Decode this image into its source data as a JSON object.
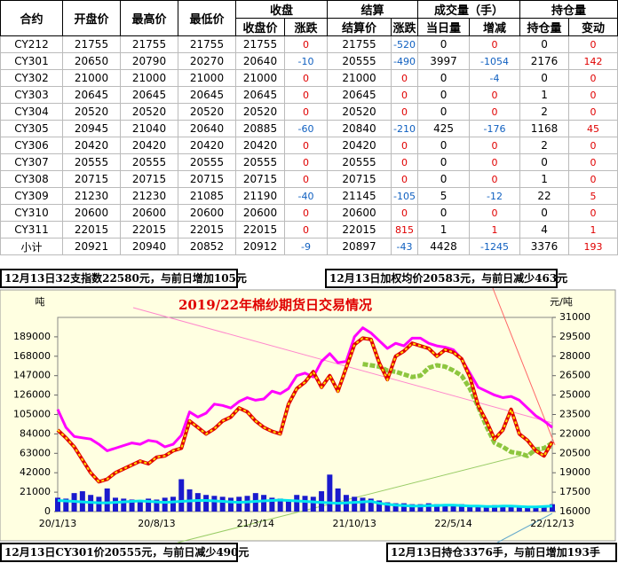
{
  "table": {
    "header_top": [
      "合约",
      "开盘价",
      "最高价",
      "最低价",
      "收盘",
      "结算",
      "成交量（手）",
      "持仓量"
    ],
    "header_sub": [
      "收盘价",
      "涨跌",
      "结算价",
      "涨跌",
      "当日量",
      "增减",
      "持仓量",
      "变动"
    ],
    "rows": [
      [
        "CY212",
        21755,
        21755,
        21755,
        21755,
        0,
        21755,
        -520,
        0,
        0,
        0,
        0
      ],
      [
        "CY301",
        20650,
        20790,
        20270,
        20640,
        -10,
        20555,
        -490,
        3997,
        -1054,
        2176,
        142
      ],
      [
        "CY302",
        21000,
        21000,
        21000,
        21000,
        0,
        21000,
        0,
        0,
        -4,
        0,
        0
      ],
      [
        "CY303",
        20645,
        20645,
        20645,
        20645,
        0,
        20645,
        0,
        0,
        0,
        1,
        0
      ],
      [
        "CY304",
        20520,
        20520,
        20520,
        20520,
        0,
        20520,
        0,
        0,
        0,
        2,
        0
      ],
      [
        "CY305",
        20945,
        21040,
        20640,
        20885,
        -60,
        20840,
        -210,
        425,
        -176,
        1168,
        45
      ],
      [
        "CY306",
        20420,
        20420,
        20420,
        20420,
        0,
        20420,
        0,
        0,
        0,
        2,
        0
      ],
      [
        "CY307",
        20555,
        20555,
        20555,
        20555,
        0,
        20555,
        0,
        0,
        0,
        0,
        0
      ],
      [
        "CY308",
        20715,
        20715,
        20715,
        20715,
        0,
        20715,
        0,
        0,
        0,
        1,
        0
      ],
      [
        "CY309",
        21230,
        21230,
        21085,
        21190,
        -40,
        21145,
        -105,
        5,
        -12,
        22,
        5
      ],
      [
        "CY310",
        20600,
        20600,
        20600,
        20600,
        0,
        20600,
        0,
        0,
        0,
        0,
        0
      ],
      [
        "CY311",
        22015,
        22015,
        22015,
        22015,
        0,
        22015,
        815,
        1,
        1,
        4,
        1
      ],
      [
        "小计",
        20921,
        20940,
        20852,
        20912,
        -9,
        20897,
        -43,
        4428,
        -1245,
        3376,
        193
      ]
    ]
  },
  "notes": [
    "12月13日32支指数22580元，与前日增加105元",
    "12月13日加权均价20583元，与前日减少463元",
    "12月13日CY301价20555元，与前日减少490元",
    "12月13日持仓3376手，与前日增加193手"
  ],
  "chart_data": {
    "type": "line",
    "title": "2019/22年棉纱期货日交易情况",
    "y_label": "吨",
    "y2_label": "元/吨",
    "categories": [
      "20/1/13",
      null,
      null,
      null,
      null,
      null,
      null,
      null,
      null,
      null,
      null,
      null,
      "20/8/13",
      null,
      null,
      null,
      null,
      null,
      null,
      null,
      null,
      null,
      null,
      null,
      "21/3/14",
      null,
      null,
      null,
      null,
      null,
      null,
      null,
      null,
      null,
      null,
      null,
      "21/10/13",
      null,
      null,
      null,
      null,
      null,
      null,
      null,
      null,
      null,
      null,
      null,
      "22/5/14",
      null,
      null,
      null,
      null,
      null,
      null,
      null,
      null,
      null,
      null,
      null,
      "22/12/13"
    ],
    "ylim": [
      0,
      210000
    ],
    "yticks": [
      0,
      21000,
      42000,
      63000,
      84000,
      105000,
      126000,
      147000,
      168000,
      189000
    ],
    "y2lim": [
      16000,
      31000
    ],
    "y2ticks": [
      16000,
      17500,
      19000,
      20500,
      22000,
      23500,
      25000,
      26500,
      28000,
      29500,
      31000
    ],
    "series": [
      {
        "kind": "bar",
        "color": "#1a1acd",
        "values": [
          15000,
          14000,
          20000,
          22000,
          18000,
          16000,
          25000,
          15000,
          14000,
          13000,
          12000,
          14000,
          13000,
          15000,
          16000,
          35000,
          24000,
          20000,
          18000,
          17000,
          16000,
          15000,
          16000,
          17000,
          20000,
          18000,
          15000,
          14000,
          13000,
          18000,
          17000,
          16000,
          22000,
          40000,
          25000,
          18000,
          16000,
          15000,
          14000,
          12000,
          10000,
          9000,
          9000,
          8000,
          8000,
          9000,
          8000,
          7000,
          7000,
          8000,
          7000,
          6000,
          6000,
          7000,
          6000,
          5000,
          5000,
          6000,
          5000,
          5000,
          8000
        ]
      },
      {
        "kind": "line",
        "color": "#00e5ee",
        "values": [
          12000,
          11500,
          11000,
          10500,
          10000,
          9500,
          9500,
          10000,
          10500,
          11000,
          11500,
          11000,
          10500,
          10000,
          10500,
          11000,
          11500,
          12000,
          12000,
          11500,
          11000,
          10500,
          10000,
          10500,
          11000,
          11500,
          12000,
          12500,
          12000,
          11500,
          11000,
          10500,
          10000,
          9500,
          9000,
          9500,
          10000,
          10500,
          11000,
          9000,
          8000,
          7000,
          6500,
          6000,
          6000,
          6500,
          6500,
          7000,
          7000,
          6500,
          6000,
          6000,
          5500,
          5500,
          6000,
          6000,
          5500,
          5000,
          5000,
          5500,
          6000
        ]
      },
      {
        "kind": "line",
        "axis": "y2",
        "color": "#ff00ff",
        "values": [
          23900,
          22500,
          21800,
          21700,
          21600,
          21200,
          20700,
          20900,
          21100,
          21300,
          21200,
          21500,
          21400,
          21000,
          21200,
          21900,
          23700,
          23300,
          23600,
          24300,
          24200,
          24000,
          24500,
          24800,
          24600,
          24700,
          25300,
          25100,
          25500,
          26500,
          26700,
          26400,
          27600,
          28200,
          27500,
          27600,
          29500,
          30200,
          29800,
          29200,
          28600,
          29000,
          28800,
          29400,
          29400,
          29000,
          28800,
          28700,
          28500,
          27800,
          26700,
          25600,
          25300,
          25000,
          24800,
          24900,
          24600,
          24000,
          23400,
          23000,
          22500
        ]
      },
      {
        "kind": "line",
        "axis": "y2",
        "color": "#8dc63f",
        "values": [
          null,
          null,
          null,
          null,
          null,
          null,
          null,
          null,
          null,
          null,
          null,
          null,
          null,
          null,
          null,
          null,
          null,
          null,
          null,
          null,
          null,
          null,
          null,
          null,
          null,
          null,
          null,
          null,
          null,
          null,
          null,
          null,
          null,
          null,
          null,
          null,
          null,
          27400,
          27300,
          27200,
          26900,
          26800,
          26600,
          26400,
          26500,
          27100,
          27300,
          27200,
          26900,
          26500,
          25500,
          24100,
          22600,
          21300,
          21000,
          20600,
          20500,
          20300,
          20800,
          20900,
          21300
        ]
      },
      {
        "kind": "line",
        "axis": "y2",
        "color": "#e00000",
        "values": [
          22300,
          21700,
          21000,
          20000,
          19000,
          18300,
          18500,
          19000,
          19300,
          19600,
          19900,
          19700,
          20200,
          20300,
          20700,
          20900,
          23000,
          22500,
          22000,
          22400,
          23000,
          23300,
          24000,
          23700,
          23000,
          22500,
          22200,
          22000,
          24300,
          25500,
          26000,
          26800,
          25600,
          26500,
          25300,
          27100,
          28900,
          29400,
          29300,
          27500,
          26200,
          28000,
          28400,
          29000,
          28800,
          28600,
          28000,
          28500,
          28300,
          27800,
          26400,
          24200,
          23000,
          21600,
          22300,
          23900,
          22000,
          21500,
          20700,
          20300,
          21400
        ]
      }
    ]
  }
}
